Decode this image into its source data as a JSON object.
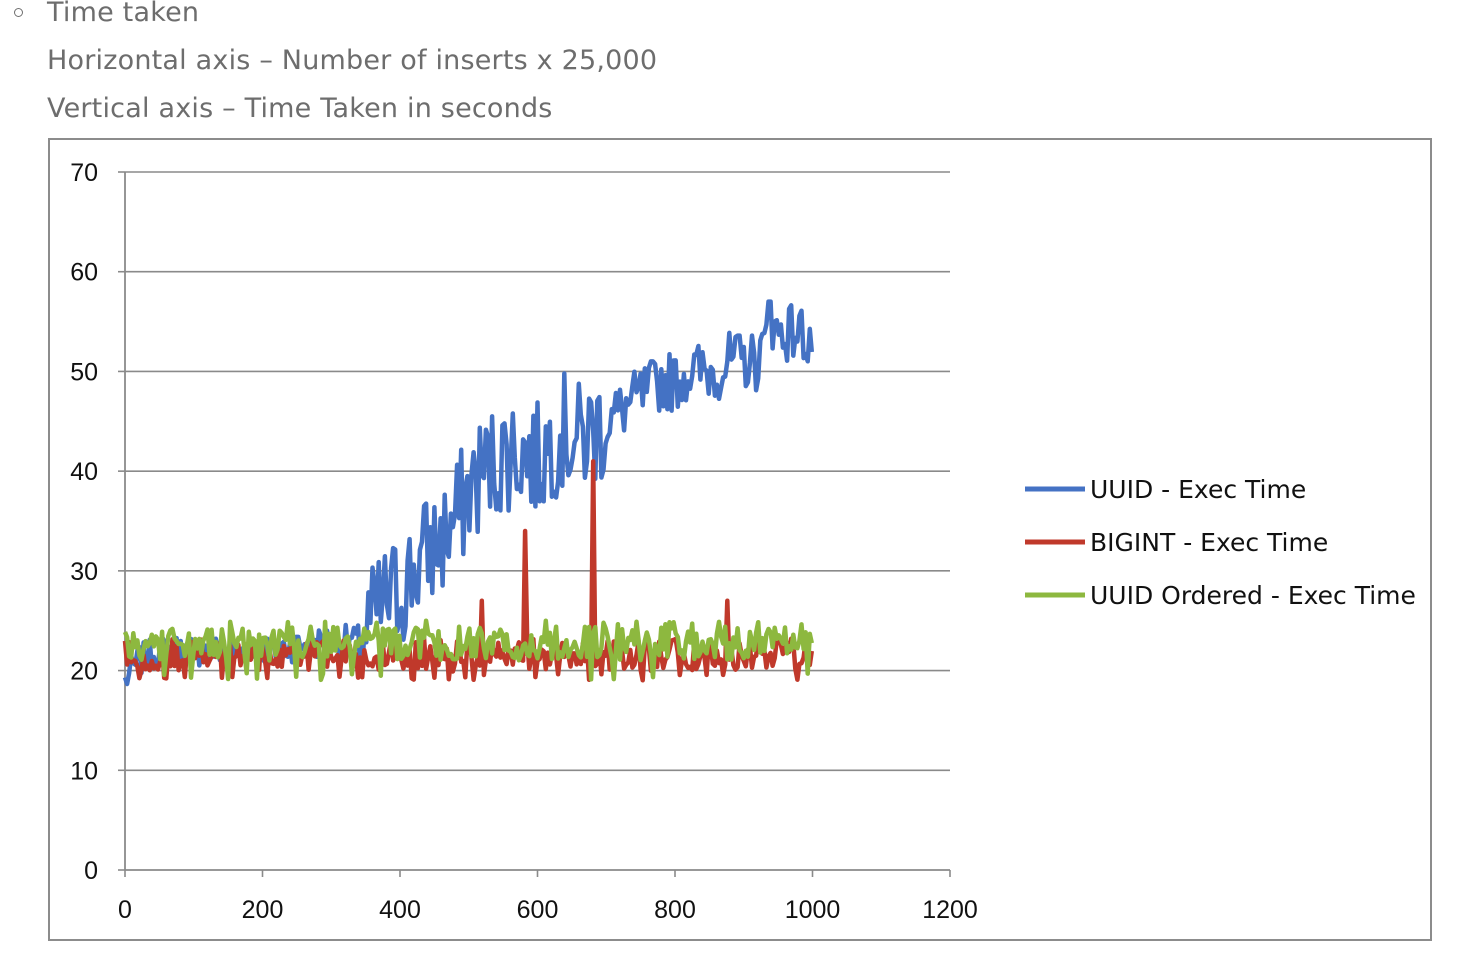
{
  "notes": {
    "bullet_title": "Time taken",
    "horizontal_axis": "Horizontal axis – Number of inserts x 25,000",
    "vertical_axis": "Vertical axis – Time Taken in seconds"
  },
  "chart_data": {
    "type": "line",
    "title": "",
    "xlabel": "",
    "ylabel": "",
    "xlim": [
      0,
      1200
    ],
    "ylim": [
      0,
      70
    ],
    "xticks": [
      0,
      200,
      400,
      600,
      800,
      1000,
      1200
    ],
    "yticks": [
      0,
      10,
      20,
      30,
      40,
      50,
      60,
      70
    ],
    "grid": "horizontal",
    "legend_position": "right",
    "series": [
      {
        "name": "UUID - Exec Time",
        "color": "#4472C4",
        "x": [
          0,
          20,
          50,
          100,
          150,
          200,
          250,
          300,
          340,
          360,
          380,
          400,
          420,
          440,
          460,
          480,
          500,
          520,
          540,
          560,
          580,
          600,
          620,
          640,
          660,
          680,
          700,
          720,
          740,
          760,
          780,
          800,
          820,
          840,
          860,
          880,
          900,
          920,
          940,
          960,
          980,
          1000
        ],
        "values": [
          19,
          21,
          22,
          22,
          22,
          22,
          22.5,
          23,
          23,
          25,
          27,
          28,
          30,
          32,
          33,
          35,
          38,
          40,
          41,
          42,
          42,
          41,
          43,
          44,
          43,
          44,
          45,
          46,
          47,
          48,
          49,
          49,
          50,
          50,
          50,
          51,
          51,
          51,
          54,
          54,
          54,
          53
        ],
        "peak": 57
      },
      {
        "name": "BIGINT - Exec Time",
        "color": "#C0392B",
        "x": [
          0,
          100,
          200,
          300,
          400,
          500,
          520,
          580,
          600,
          680,
          700,
          800,
          880,
          1000
        ],
        "values": [
          20.5,
          20.5,
          21,
          21,
          21,
          21,
          27,
          34,
          21,
          41,
          21.5,
          21.5,
          27,
          21
        ],
        "spikes": [
          {
            "x": 520,
            "value": 27
          },
          {
            "x": 583,
            "value": 34
          },
          {
            "x": 680,
            "value": 41
          },
          {
            "x": 876,
            "value": 27
          }
        ]
      },
      {
        "name": "UUID Ordered - Exec Time",
        "color": "#8DB83F",
        "x": [
          0,
          200,
          400,
          600,
          800,
          1000
        ],
        "values": [
          22.5,
          22.5,
          22.5,
          22.5,
          22.5,
          22.5
        ],
        "range": [
          19,
          25
        ]
      }
    ]
  }
}
